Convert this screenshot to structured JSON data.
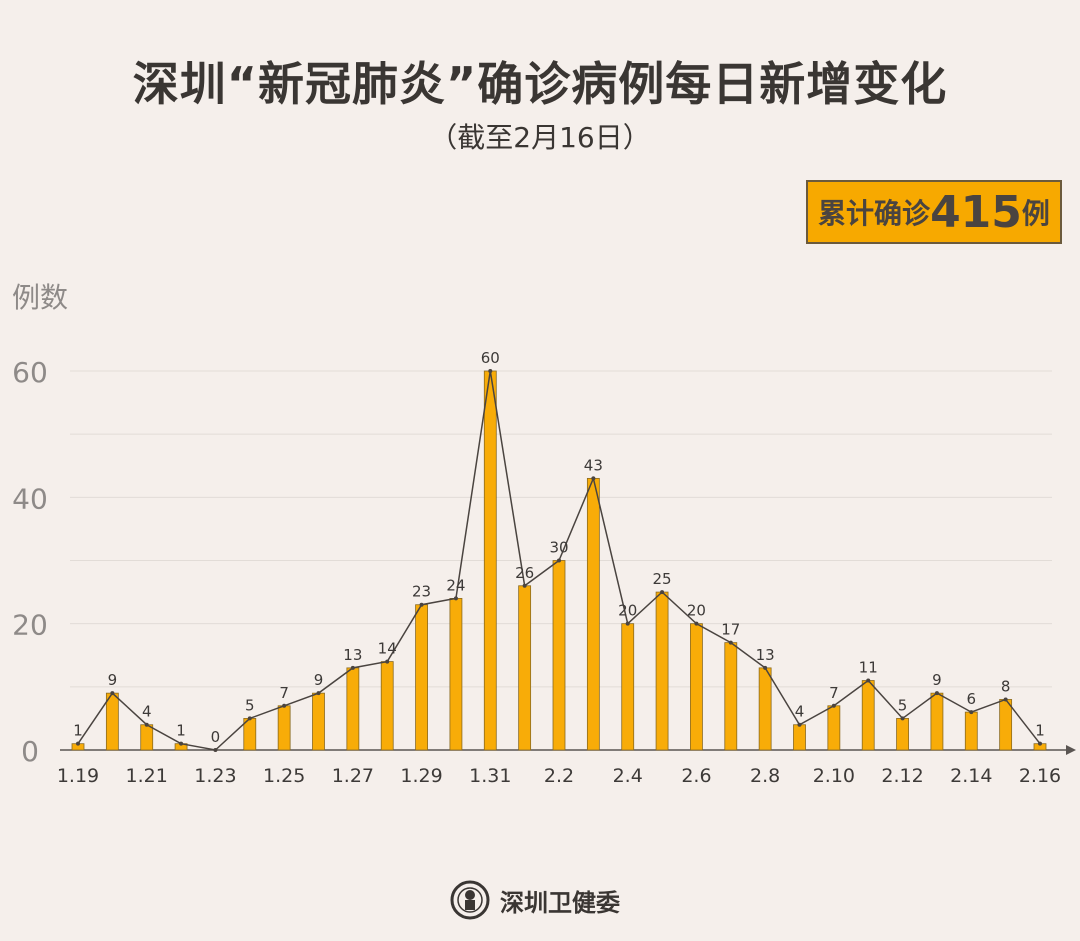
{
  "header": {
    "title": "深圳“新冠肺炎”确诊病例每日新增变化",
    "subtitle": "（截至2月16日）"
  },
  "badge": {
    "prefix": "累计确诊",
    "number": "415",
    "suffix": "例",
    "color": "#f7a900"
  },
  "footer": {
    "org": "深圳卫健委"
  },
  "chart_data": {
    "type": "bar",
    "overlay": "line",
    "title": "深圳“新冠肺炎”确诊病例每日新增变化",
    "ylabel": "例数",
    "xlabel": "",
    "ylim": [
      0,
      60
    ],
    "yticks": [
      "0",
      "20",
      "40",
      "60"
    ],
    "grid": true,
    "x_tick_labels": [
      "1.19",
      "1.21",
      "1.23",
      "1.25",
      "1.27",
      "1.29",
      "1.31",
      "2.2",
      "2.4",
      "2.6",
      "2.8",
      "2.10",
      "2.12",
      "2.14",
      "2.16"
    ],
    "values": [
      1,
      9,
      4,
      1,
      0,
      5,
      7,
      9,
      13,
      14,
      23,
      24,
      60,
      26,
      30,
      43,
      20,
      25,
      20,
      17,
      13,
      4,
      7,
      11,
      5,
      9,
      6,
      8,
      1
    ],
    "data_labels": [
      "1",
      "9",
      "4",
      "1",
      "0",
      "5",
      "7",
      "9",
      "13",
      "14",
      "23",
      "24",
      "60",
      "26",
      "30",
      "43",
      "20",
      "25",
      "20",
      "17",
      "13",
      "4",
      "7",
      "11",
      "5",
      "9",
      "6",
      "8",
      "1"
    ],
    "bar_color": "#f8ac08",
    "line_color": "#4a4440"
  }
}
